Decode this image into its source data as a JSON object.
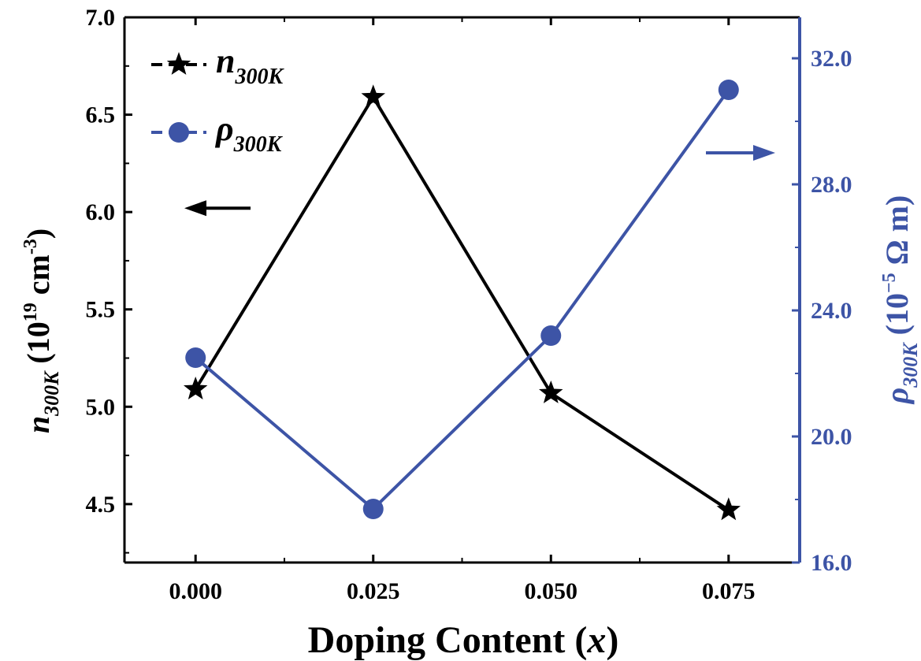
{
  "chart_data": {
    "type": "line",
    "x_axis": {
      "label_main": "Doping Content (",
      "label_var": "x",
      "label_close": ")",
      "range": [
        -0.01,
        0.085
      ],
      "ticks": [
        0.0,
        0.025,
        0.05,
        0.075
      ],
      "tick_labels": [
        "0.000",
        "0.025",
        "0.050",
        "0.075"
      ]
    },
    "y_left": {
      "label_sym": "n",
      "label_sub": "300K",
      "label_unit_a": " (10",
      "label_unit_exp": "19",
      "label_unit_b": " cm",
      "label_unit_exp2": "-3",
      "label_unit_c": ")",
      "range": [
        4.2,
        7.0
      ],
      "ticks": [
        4.5,
        5.0,
        5.5,
        6.0,
        6.5,
        7.0
      ],
      "tick_labels": [
        "4.5",
        "5.0",
        "5.5",
        "6.0",
        "6.5",
        "7.0"
      ],
      "color": "#000000"
    },
    "y_right": {
      "label_sym": "ρ",
      "label_sub": "300K",
      "label_unit_a": " (10",
      "label_unit_exp": "−5",
      "label_unit_b": " Ω m)",
      "range": [
        16.0,
        33.3
      ],
      "ticks": [
        16.0,
        20.0,
        24.0,
        28.0,
        32.0
      ],
      "tick_labels": [
        "16.0",
        "20.0",
        "24.0",
        "28.0",
        "32.0"
      ],
      "color": "#3d54a6"
    },
    "series": [
      {
        "name_sym": "n",
        "name_sub": "300K",
        "axis": "left",
        "marker": "star",
        "color": "#000000",
        "x": [
          0.0,
          0.025,
          0.05,
          0.075
        ],
        "y": [
          5.09,
          6.59,
          5.07,
          4.47
        ]
      },
      {
        "name_sym": "ρ",
        "name_sub": "300K",
        "axis": "right",
        "marker": "circle",
        "color": "#3d54a6",
        "x": [
          0.0,
          0.025,
          0.05,
          0.075
        ],
        "y": [
          22.5,
          17.7,
          23.2,
          31.0
        ]
      }
    ],
    "legend_position": "top-left",
    "arrows": [
      {
        "direction": "left",
        "axis": "left",
        "color": "#000000"
      },
      {
        "direction": "right",
        "axis": "right",
        "color": "#3d54a6"
      }
    ],
    "grid": false
  }
}
